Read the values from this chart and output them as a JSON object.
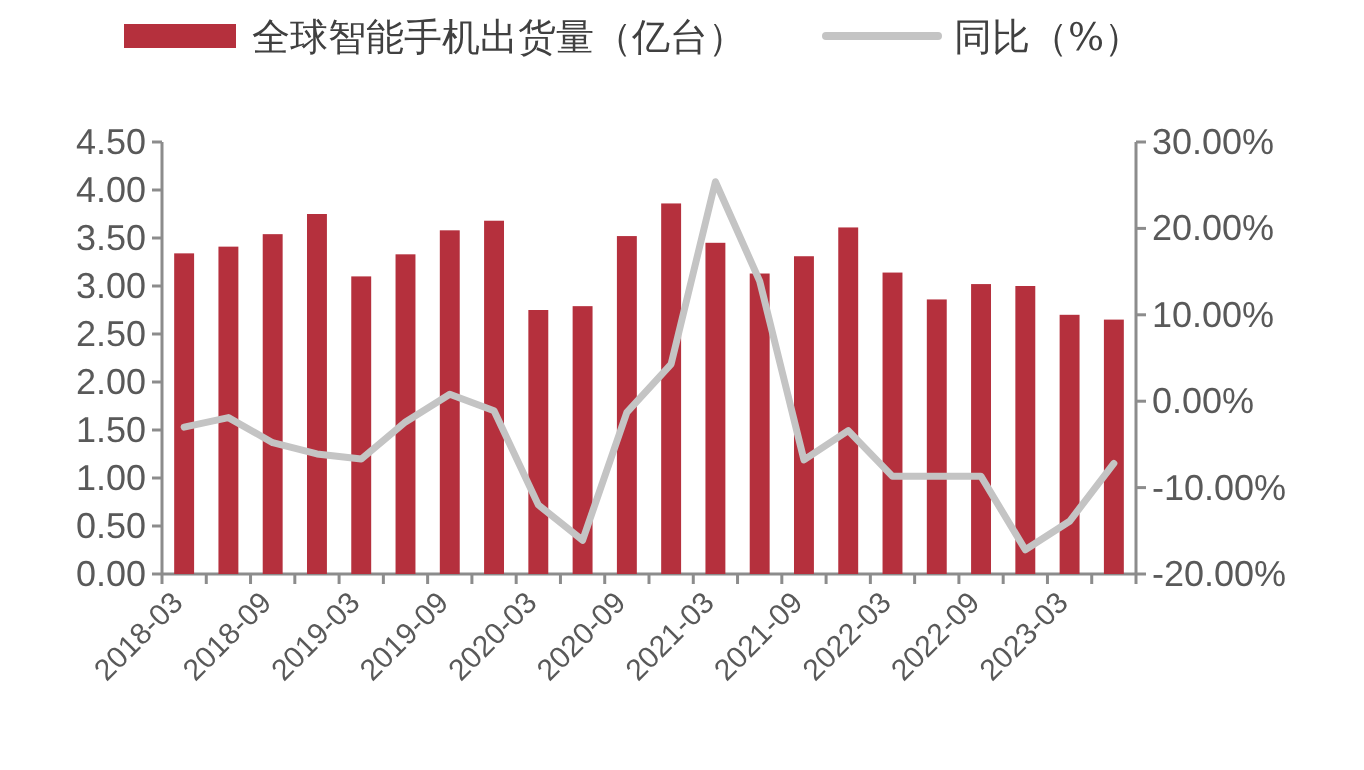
{
  "chart_data": {
    "type": "bar",
    "categories": [
      "2018-03",
      null,
      "2018-09",
      null,
      "2019-03",
      null,
      "2019-09",
      null,
      "2020-03",
      null,
      "2020-09",
      null,
      "2021-03",
      null,
      "2021-09",
      null,
      "2022-03",
      null,
      "2022-09",
      null,
      "2023-03",
      null
    ],
    "series": [
      {
        "name": "全球智能手机出货量（亿台）",
        "type": "bar",
        "color": "#b5303d",
        "values": [
          3.34,
          3.41,
          3.54,
          3.75,
          3.1,
          3.33,
          3.58,
          3.68,
          2.75,
          2.79,
          3.52,
          3.86,
          3.45,
          3.13,
          3.31,
          3.61,
          3.14,
          2.86,
          3.02,
          3.0,
          2.7,
          2.65
        ]
      },
      {
        "name": "同比（%）",
        "type": "line",
        "axis": "y2",
        "color": "#c4c4c4",
        "values": [
          -3.0,
          -1.9,
          -4.8,
          -6.1,
          -6.7,
          -2.4,
          0.8,
          -1.1,
          -12.0,
          -16.1,
          -1.3,
          4.3,
          25.4,
          13.9,
          -6.8,
          -3.4,
          -8.7,
          -8.7,
          -8.7,
          -17.2,
          -13.9,
          -7.2
        ]
      }
    ],
    "ylim": [
      0,
      4.5
    ],
    "yticks": [
      {
        "value": 0,
        "label": "0.00"
      },
      {
        "value": 0.5,
        "label": "0.50"
      },
      {
        "value": 1,
        "label": "1.00"
      },
      {
        "value": 1.5,
        "label": "1.50"
      },
      {
        "value": 2,
        "label": "2.00"
      },
      {
        "value": 2.5,
        "label": "2.50"
      },
      {
        "value": 3,
        "label": "3.00"
      },
      {
        "value": 3.5,
        "label": "3.50"
      },
      {
        "value": 4,
        "label": "4.00"
      },
      {
        "value": 4.5,
        "label": "4.50"
      }
    ],
    "y2lim": [
      -20,
      30
    ],
    "y2ticks": [
      {
        "value": -20,
        "label": "-20.00%"
      },
      {
        "value": -10,
        "label": "-10.00%"
      },
      {
        "value": 0,
        "label": "0.00%"
      },
      {
        "value": 10,
        "label": "10.00%"
      },
      {
        "value": 20,
        "label": "20.00%"
      },
      {
        "value": 30,
        "label": "30.00%"
      }
    ],
    "legend": "top"
  }
}
